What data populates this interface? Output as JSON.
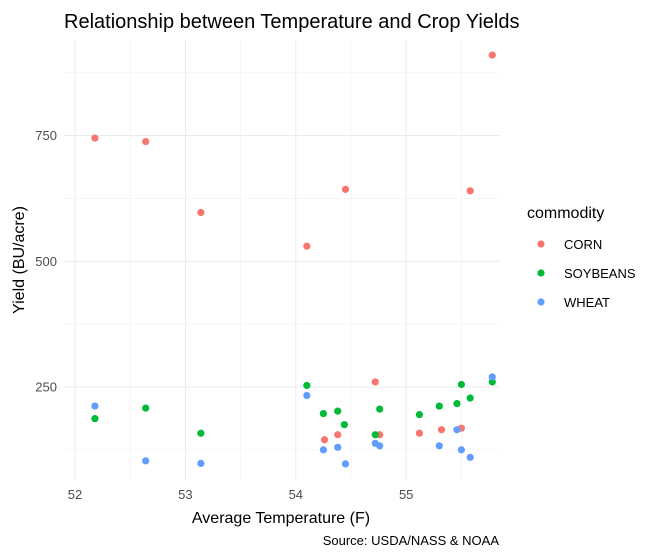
{
  "chart_data": {
    "type": "scatter",
    "title": "Relationship between Temperature and Crop Yields",
    "xlabel": "Average Temperature (F)",
    "ylabel": "Yield (BU/acre)",
    "caption": "Source: USDA/NASS & NOAA",
    "xlim": [
      51.9,
      55.85
    ],
    "ylim": [
      65,
      940
    ],
    "x_ticks": [
      52,
      53,
      54,
      55
    ],
    "x_tick_labels": [
      "52",
      "53",
      "54",
      "55"
    ],
    "y_ticks": [
      250,
      500,
      750
    ],
    "y_tick_labels": [
      "250",
      "500",
      "750"
    ],
    "grid": true,
    "legend": {
      "title": "commodity",
      "position": "right"
    },
    "series": [
      {
        "name": "CORN",
        "color": "#F8766D",
        "points": [
          [
            52.18,
            745
          ],
          [
            52.64,
            738
          ],
          [
            53.14,
            597
          ],
          [
            54.1,
            530
          ],
          [
            54.45,
            643
          ],
          [
            55.58,
            640
          ],
          [
            55.78,
            910
          ],
          [
            54.72,
            260
          ],
          [
            54.26,
            145
          ],
          [
            54.38,
            155
          ],
          [
            54.76,
            155
          ],
          [
            55.12,
            158
          ],
          [
            55.32,
            165
          ],
          [
            55.5,
            168
          ]
        ]
      },
      {
        "name": "SOYBEANS",
        "color": "#00BA38",
        "points": [
          [
            52.18,
            187
          ],
          [
            52.64,
            208
          ],
          [
            53.14,
            158
          ],
          [
            54.1,
            253
          ],
          [
            54.25,
            197
          ],
          [
            54.38,
            202
          ],
          [
            54.44,
            175
          ],
          [
            54.72,
            155
          ],
          [
            54.76,
            206
          ],
          [
            55.12,
            195
          ],
          [
            55.3,
            212
          ],
          [
            55.46,
            217
          ],
          [
            55.5,
            255
          ],
          [
            55.58,
            228
          ],
          [
            55.78,
            260
          ]
        ]
      },
      {
        "name": "WHEAT",
        "color": "#619CFF",
        "points": [
          [
            52.18,
            212
          ],
          [
            52.64,
            103
          ],
          [
            53.14,
            98
          ],
          [
            54.1,
            233
          ],
          [
            54.25,
            125
          ],
          [
            54.38,
            130
          ],
          [
            54.45,
            97
          ],
          [
            54.72,
            138
          ],
          [
            54.76,
            133
          ],
          [
            55.3,
            133
          ],
          [
            55.46,
            165
          ],
          [
            55.5,
            125
          ],
          [
            55.58,
            110
          ],
          [
            55.78,
            270
          ]
        ]
      }
    ]
  }
}
